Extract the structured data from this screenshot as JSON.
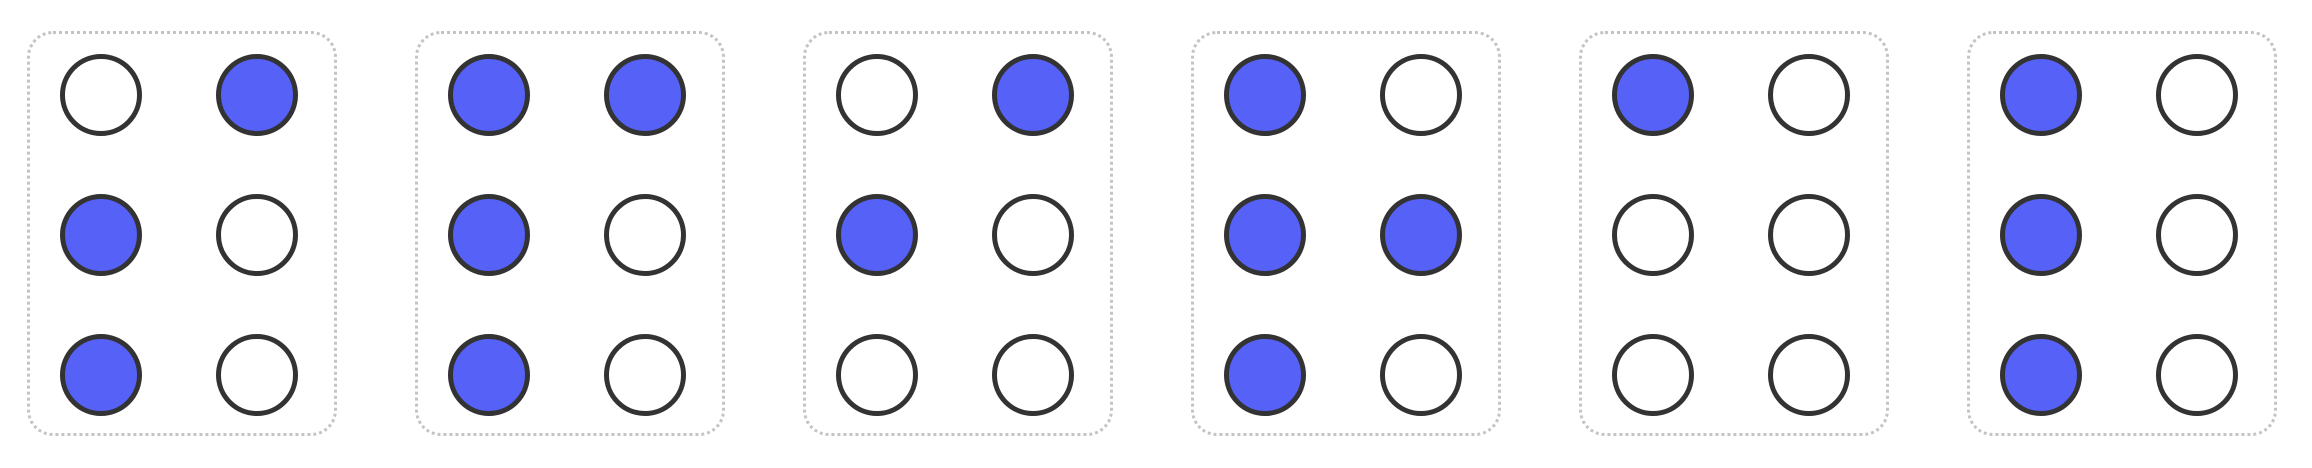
{
  "colors": {
    "raised_fill": "#5661f7",
    "dot_outline": "#333333",
    "empty_fill": "#ffffff",
    "cell_border": "#c4c4c4"
  },
  "dot_order": [
    "p1",
    "p4",
    "p2",
    "p5",
    "p3",
    "p6"
  ],
  "cells": [
    {
      "raised": {
        "p1": false,
        "p4": true,
        "p2": true,
        "p5": false,
        "p3": true,
        "p6": false
      }
    },
    {
      "raised": {
        "p1": true,
        "p4": true,
        "p2": true,
        "p5": false,
        "p3": true,
        "p6": false
      }
    },
    {
      "raised": {
        "p1": false,
        "p4": true,
        "p2": true,
        "p5": false,
        "p3": false,
        "p6": false
      }
    },
    {
      "raised": {
        "p1": true,
        "p4": false,
        "p2": true,
        "p5": true,
        "p3": true,
        "p6": false
      }
    },
    {
      "raised": {
        "p1": true,
        "p4": false,
        "p2": false,
        "p5": false,
        "p3": false,
        "p6": false
      }
    },
    {
      "raised": {
        "p1": true,
        "p4": false,
        "p2": true,
        "p5": false,
        "p3": true,
        "p6": false
      }
    }
  ]
}
